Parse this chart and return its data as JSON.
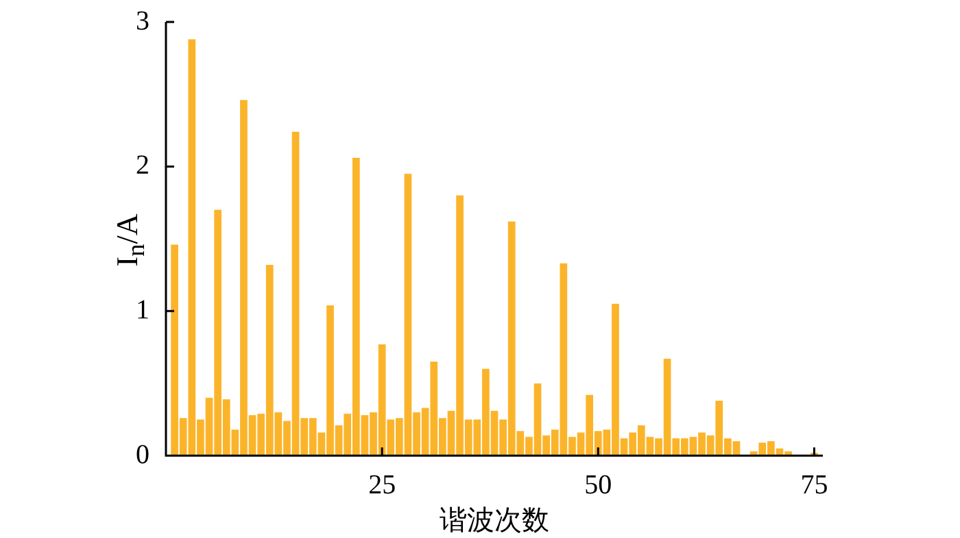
{
  "chart_data": {
    "type": "bar",
    "xlabel": "谐波次数",
    "ylabel": "I$_{n}$/A",
    "x": [
      1,
      2,
      3,
      4,
      5,
      6,
      7,
      8,
      9,
      10,
      11,
      12,
      13,
      14,
      15,
      16,
      17,
      18,
      19,
      20,
      21,
      22,
      23,
      24,
      25,
      26,
      27,
      28,
      29,
      30,
      31,
      32,
      33,
      34,
      35,
      36,
      37,
      38,
      39,
      40,
      41,
      42,
      43,
      44,
      45,
      46,
      47,
      48,
      49,
      50,
      51,
      52,
      53,
      54,
      55,
      56,
      57,
      58,
      59,
      60,
      61,
      62,
      63,
      64,
      65,
      66,
      67,
      68,
      69,
      70,
      71,
      72,
      73,
      74,
      75
    ],
    "values": [
      1.46,
      0.26,
      2.88,
      0.25,
      0.4,
      1.7,
      0.39,
      0.18,
      2.46,
      0.28,
      0.29,
      1.32,
      0.3,
      0.24,
      2.24,
      0.26,
      0.26,
      0.16,
      1.04,
      0.21,
      0.29,
      2.06,
      0.28,
      0.3,
      0.77,
      0.25,
      0.26,
      1.95,
      0.3,
      0.33,
      0.65,
      0.26,
      0.31,
      1.8,
      0.25,
      0.25,
      0.6,
      0.31,
      0.25,
      1.62,
      0.17,
      0.13,
      0.5,
      0.14,
      0.18,
      1.33,
      0.13,
      0.16,
      0.42,
      0.17,
      0.18,
      1.05,
      0.12,
      0.16,
      0.21,
      0.13,
      0.12,
      0.67,
      0.12,
      0.12,
      0.13,
      0.16,
      0.14,
      0.38,
      0.12,
      0.1,
      0,
      0.03,
      0.09,
      0.1,
      0.05,
      0.03,
      0,
      0,
      0.02
    ],
    "color": "#fbb42a",
    "xlim": [
      0,
      76
    ],
    "xticks": [
      25,
      50,
      75
    ],
    "ylim": [
      0,
      3
    ],
    "yticks": [
      0,
      1,
      2,
      3
    ]
  }
}
